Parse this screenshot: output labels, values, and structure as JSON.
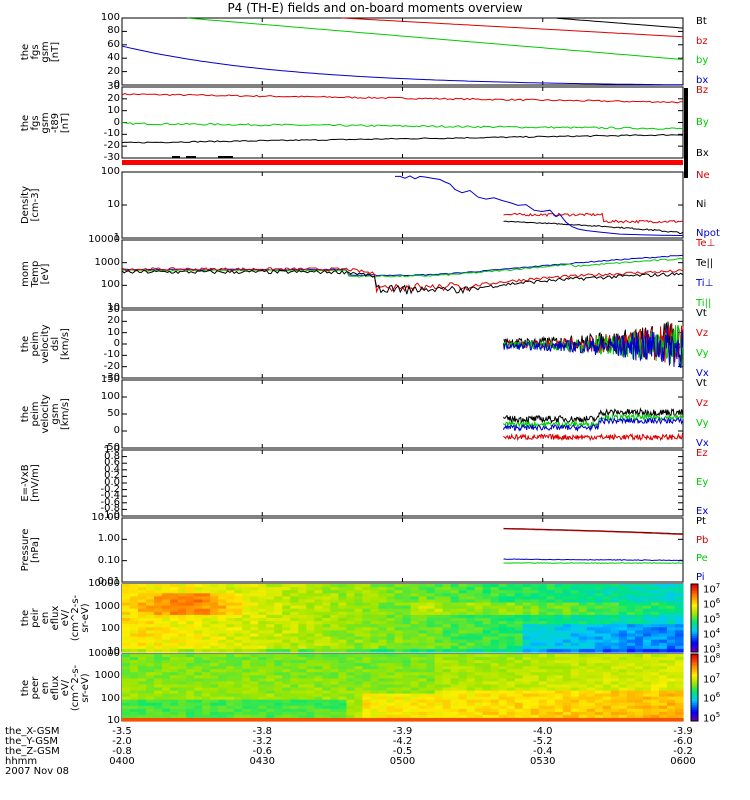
{
  "title": "P4 (TH-E) fields and on-board moments overview",
  "colors": {
    "black": "#000000",
    "red": "#dd0000",
    "green": "#00cc00",
    "blue": "#0000cc"
  },
  "chart_data": [
    {
      "type": "line",
      "name": "fgs_gsm",
      "ylabel": "the\nfgs\ngsm\n[nT]",
      "ylim": [
        0,
        100
      ],
      "ticks": [
        "100",
        "80",
        "60",
        "40",
        "20",
        "0"
      ],
      "series": [
        {
          "name": "Bt",
          "color": "black"
        },
        {
          "name": "bz",
          "color": "red"
        },
        {
          "name": "by",
          "color": "green"
        },
        {
          "name": "bx",
          "color": "blue"
        }
      ]
    },
    {
      "type": "line",
      "name": "fgs_gsm_t89",
      "ylabel": "the\nfgs\ngsm\n-t89\n[nT]",
      "ylim": [
        -35,
        35
      ],
      "ticks": [
        "30",
        "20",
        "10",
        "0",
        "-10",
        "-20",
        "-30"
      ],
      "series": [
        {
          "name": "Bz",
          "color": "red"
        },
        {
          "name": "By",
          "color": "green"
        },
        {
          "name": "Bx",
          "color": "black"
        }
      ]
    },
    {
      "type": "line",
      "name": "density",
      "ylabel": "Density\n[cm-3]",
      "ylim": [
        0.7,
        300
      ],
      "ticks": [
        "100",
        "10",
        "1"
      ],
      "series": [
        {
          "name": "Ne",
          "color": "red"
        },
        {
          "name": "Ni",
          "color": "black"
        },
        {
          "name": "Npot",
          "color": "blue"
        }
      ]
    },
    {
      "type": "line",
      "name": "temperature",
      "ylabel": "mom\nTemp\n[eV]",
      "ylim": [
        10,
        10000
      ],
      "ticks": [
        "10000",
        "1000",
        "100",
        "10"
      ],
      "series": [
        {
          "name": "Te⊥",
          "color": "red"
        },
        {
          "name": "Te||",
          "color": "black"
        },
        {
          "name": "Ti⊥",
          "color": "blue"
        },
        {
          "name": "Ti||",
          "color": "green"
        }
      ]
    },
    {
      "type": "line",
      "name": "peim_velocity_dsl",
      "ylabel": "the\npeim\nvelocity\ndsl\n[km/s]",
      "ylim": [
        -30,
        30
      ],
      "ticks": [
        "30",
        "20",
        "10",
        "0",
        "-10",
        "-20",
        "-30"
      ],
      "series": [
        {
          "name": "Vt",
          "color": "black"
        },
        {
          "name": "Vz",
          "color": "red"
        },
        {
          "name": "Vy",
          "color": "green"
        },
        {
          "name": "Vx",
          "color": "blue"
        }
      ]
    },
    {
      "type": "line",
      "name": "peim_velocity_gsm",
      "ylabel": "the\npeim\nvelocity\ngsm\n[km/s]",
      "ylim": [
        -50,
        150
      ],
      "ticks": [
        "150",
        "100",
        "50",
        "0",
        "-50"
      ],
      "series": [
        {
          "name": "Vt",
          "color": "black"
        },
        {
          "name": "Vz",
          "color": "red"
        },
        {
          "name": "Vy",
          "color": "green"
        },
        {
          "name": "Vx",
          "color": "blue"
        }
      ]
    },
    {
      "type": "line",
      "name": "e_vxb",
      "ylabel": "E=-VxB\n[mV/m]",
      "ylim": [
        -1,
        1
      ],
      "ticks": [
        "1.0",
        "0.8",
        "0.6",
        "0.4",
        "0.2",
        "0.0",
        "-0.2",
        "-0.4",
        "-0.6",
        "-0.8",
        "-1.0"
      ],
      "series": [
        {
          "name": "Ez",
          "color": "red"
        },
        {
          "name": "Ey",
          "color": "green"
        },
        {
          "name": "Ex",
          "color": "blue"
        }
      ]
    },
    {
      "type": "line",
      "name": "pressure",
      "ylabel": "Pressure\n[nPa]",
      "ylim": [
        0.01,
        20
      ],
      "ticks": [
        "10.00",
        "1.00",
        "0.10",
        "0.01"
      ],
      "series": [
        {
          "name": "Pt",
          "color": "black"
        },
        {
          "name": "Pb",
          "color": "red"
        },
        {
          "name": "Pe",
          "color": "green"
        },
        {
          "name": "Pi",
          "color": "blue"
        }
      ]
    },
    {
      "type": "heatmap",
      "name": "peir_en_eflux",
      "ylabel": "the\npeir\nen\neflux\neV/\n(cm^2-s-\nsr-eV)",
      "ylim": [
        7,
        30000
      ],
      "ticks": [
        "10000",
        "1000",
        "100",
        "10"
      ],
      "colorbar": [
        "10^7",
        "10^6",
        "10^5",
        "10^4",
        "10^3"
      ]
    },
    {
      "type": "heatmap",
      "name": "peer_en_eflux",
      "ylabel": "the\npeer\nen\neflux\neV/\n(cm^2-s-\nsr-eV)",
      "ylim": [
        7,
        30000
      ],
      "ticks": [
        "10000",
        "1000",
        "100",
        "10"
      ],
      "colorbar": [
        "10^8",
        "10^7",
        "10^6",
        "10^5"
      ]
    }
  ],
  "xaxis": {
    "rows": [
      {
        "label": "the_X-GSM",
        "values": [
          "-3.5",
          "-3.8",
          "-3.9",
          "-4.0",
          "-3.9"
        ]
      },
      {
        "label": "the_Y-GSM",
        "values": [
          "-2.0",
          "-3.2",
          "-4.2",
          "-5.2",
          "-6.0"
        ]
      },
      {
        "label": "the_Z-GSM",
        "values": [
          "-0.8",
          "-0.6",
          "-0.5",
          "-0.4",
          "-0.2"
        ]
      },
      {
        "label": "hhmm",
        "values": [
          "0400",
          "0430",
          "0500",
          "0530",
          "0600"
        ]
      }
    ],
    "date": "2007 Nov 08"
  }
}
